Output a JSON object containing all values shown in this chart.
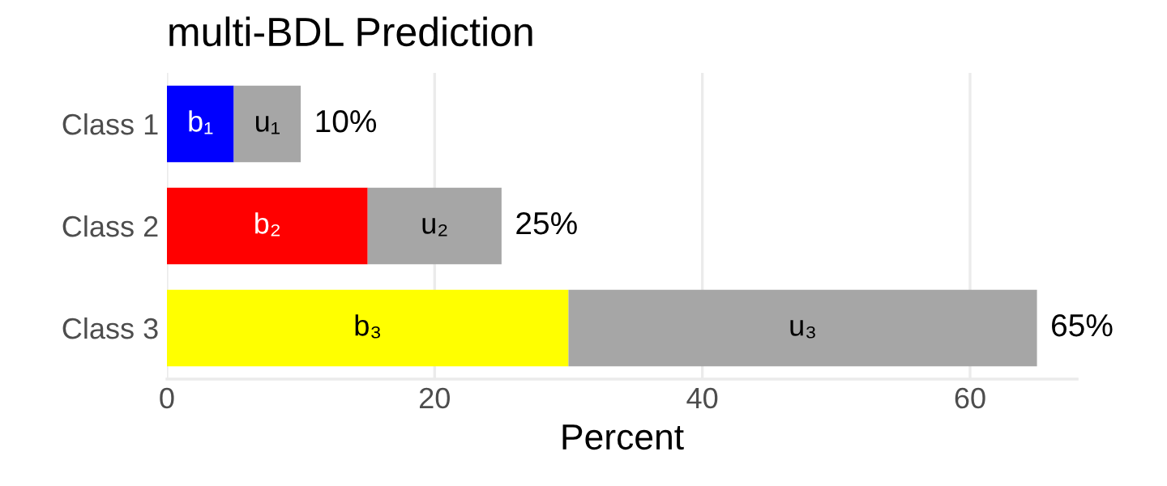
{
  "chart_data": {
    "type": "bar",
    "orientation": "horizontal",
    "stacked": true,
    "title": "multi-BDL Prediction",
    "xlabel": "Percent",
    "categories": [
      "Class 1",
      "Class 2",
      "Class 3"
    ],
    "series": [
      {
        "colors": [
          "#0000ff",
          "#ff0000",
          "#ffff00"
        ],
        "values": [
          5,
          15,
          30
        ],
        "value_labels": [
          "b₁",
          "b₂",
          "b₃"
        ]
      },
      {
        "color": "#a6a6a6",
        "values": [
          5,
          10,
          35
        ],
        "value_labels": [
          "u₁",
          "u₂",
          "u₃"
        ]
      }
    ],
    "totals": [
      "10%",
      "25%",
      "65%"
    ],
    "xlim": [
      0,
      68
    ],
    "xticks": [
      0,
      20,
      40,
      60
    ],
    "grid": "x",
    "legend": false
  }
}
